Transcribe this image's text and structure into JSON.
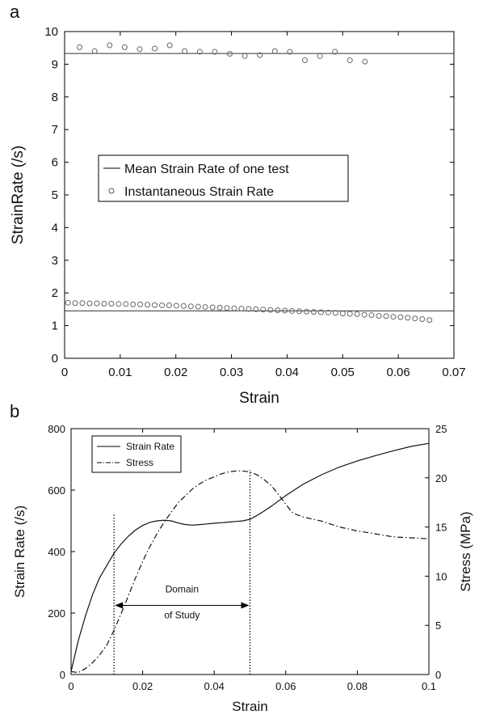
{
  "chart_data": [
    {
      "panel_label": "a",
      "type": "scatter",
      "xlabel": "Strain",
      "ylabel": "StrainRate (/s)",
      "xlim": [
        0,
        0.07
      ],
      "ylim": [
        0,
        10
      ],
      "xticks": [
        0,
        0.01,
        0.02,
        0.03,
        0.04,
        0.05,
        0.06,
        0.07
      ],
      "xtick_labels": [
        "0",
        "0.01",
        "0.02",
        "0.03",
        "0.04",
        "0.05",
        "0.06",
        "0.07"
      ],
      "yticks": [
        0,
        1,
        2,
        3,
        4,
        5,
        6,
        7,
        8,
        9,
        10
      ],
      "ytick_labels": [
        "0",
        "1",
        "2",
        "3",
        "4",
        "5",
        "6",
        "7",
        "8",
        "9",
        "10"
      ],
      "grid": false,
      "legend_position": "center-left",
      "legend": [
        "Mean Strain Rate of one test",
        "Instantaneous Strain Rate"
      ],
      "series": [
        {
          "name": "Mean Strain Rate of one test",
          "style": "line",
          "x": [
            0,
            0.07
          ],
          "y": [
            9.33,
            9.33
          ]
        },
        {
          "name": "Mean Strain Rate of one test",
          "style": "line",
          "x": [
            0,
            0.07
          ],
          "y": [
            1.45,
            1.45
          ]
        },
        {
          "name": "Instantaneous Strain Rate",
          "style": "marker",
          "x": [
            0.0027,
            0.0054,
            0.0081,
            0.0108,
            0.0135,
            0.0162,
            0.0189,
            0.0216,
            0.0243,
            0.027,
            0.0297,
            0.0324,
            0.0351,
            0.0378,
            0.0405,
            0.0432,
            0.0459,
            0.0486,
            0.0513,
            0.054
          ],
          "y": [
            9.52,
            9.4,
            9.58,
            9.52,
            9.46,
            9.48,
            9.58,
            9.4,
            9.38,
            9.38,
            9.32,
            9.25,
            9.28,
            9.4,
            9.38,
            9.12,
            9.25,
            9.38,
            9.12,
            9.08
          ]
        },
        {
          "name": "Instantaneous Strain Rate",
          "style": "marker",
          "x": [
            0.0006,
            0.0019,
            0.0032,
            0.0045,
            0.0058,
            0.0071,
            0.0084,
            0.0097,
            0.011,
            0.0123,
            0.0136,
            0.0149,
            0.0162,
            0.0175,
            0.0188,
            0.0201,
            0.0214,
            0.0227,
            0.024,
            0.0253,
            0.0266,
            0.0279,
            0.0292,
            0.0305,
            0.0318,
            0.0331,
            0.0344,
            0.0357,
            0.037,
            0.0383,
            0.0396,
            0.0409,
            0.0422,
            0.0435,
            0.0448,
            0.0461,
            0.0474,
            0.0487,
            0.05,
            0.0513,
            0.0526,
            0.0539,
            0.0552,
            0.0565,
            0.0578,
            0.0591,
            0.0604,
            0.0617,
            0.063,
            0.0643,
            0.0656
          ],
          "y": [
            1.7,
            1.69,
            1.69,
            1.68,
            1.68,
            1.67,
            1.67,
            1.66,
            1.66,
            1.65,
            1.65,
            1.64,
            1.63,
            1.62,
            1.62,
            1.61,
            1.6,
            1.59,
            1.58,
            1.57,
            1.56,
            1.55,
            1.54,
            1.53,
            1.52,
            1.51,
            1.5,
            1.49,
            1.48,
            1.47,
            1.46,
            1.45,
            1.44,
            1.43,
            1.42,
            1.41,
            1.4,
            1.39,
            1.37,
            1.36,
            1.35,
            1.33,
            1.32,
            1.3,
            1.29,
            1.27,
            1.26,
            1.24,
            1.22,
            1.2,
            1.17
          ]
        }
      ]
    },
    {
      "panel_label": "b",
      "type": "line",
      "xlabel": "Strain",
      "ylabel": "Strain Rate (/s)",
      "y2label": "Stress (MPa)",
      "xlim": [
        0,
        0.1
      ],
      "ylim": [
        0,
        800
      ],
      "y2lim": [
        0,
        25
      ],
      "xticks": [
        0,
        0.02,
        0.04,
        0.06,
        0.08,
        0.1
      ],
      "xtick_labels": [
        "0",
        "0.02",
        "0.04",
        "0.06",
        "0.08",
        "0.1"
      ],
      "yticks": [
        0,
        200,
        400,
        600,
        800
      ],
      "ytick_labels": [
        "0",
        "200",
        "400",
        "600",
        "800"
      ],
      "y2ticks": [
        0,
        5,
        10,
        15,
        20,
        25
      ],
      "y2tick_labels": [
        "0",
        "5",
        "10",
        "15",
        "20",
        "25"
      ],
      "grid": false,
      "legend_position": "top-left",
      "legend": [
        "Strain Rate",
        "Stress"
      ],
      "series": [
        {
          "name": "Strain Rate",
          "axis": "left",
          "style": "solid",
          "x": [
            0,
            0.002,
            0.004,
            0.006,
            0.008,
            0.01,
            0.012,
            0.014,
            0.016,
            0.018,
            0.02,
            0.022,
            0.024,
            0.026,
            0.028,
            0.03,
            0.032,
            0.034,
            0.036,
            0.038,
            0.04,
            0.042,
            0.044,
            0.046,
            0.048,
            0.05,
            0.052,
            0.054,
            0.056,
            0.058,
            0.06,
            0.065,
            0.07,
            0.075,
            0.08,
            0.085,
            0.09,
            0.095,
            0.1
          ],
          "y": [
            10,
            110,
            190,
            260,
            315,
            355,
            395,
            425,
            450,
            470,
            485,
            495,
            500,
            502,
            500,
            493,
            488,
            486,
            488,
            490,
            492,
            494,
            496,
            498,
            500,
            505,
            518,
            532,
            548,
            565,
            582,
            620,
            650,
            675,
            695,
            712,
            728,
            742,
            752
          ]
        },
        {
          "name": "Stress",
          "axis": "right",
          "style": "dashdot",
          "x": [
            0,
            0.002,
            0.004,
            0.006,
            0.008,
            0.01,
            0.012,
            0.014,
            0.016,
            0.018,
            0.02,
            0.022,
            0.024,
            0.026,
            0.028,
            0.03,
            0.032,
            0.034,
            0.036,
            0.038,
            0.04,
            0.042,
            0.044,
            0.046,
            0.048,
            0.05,
            0.052,
            0.054,
            0.056,
            0.058,
            0.06,
            0.062,
            0.065,
            0.07,
            0.075,
            0.08,
            0.085,
            0.09,
            0.095,
            0.1
          ],
          "y": [
            0.3,
            0.2,
            0.6,
            1.2,
            2.0,
            3.0,
            4.5,
            6.2,
            8.0,
            9.8,
            11.5,
            13.0,
            14.3,
            15.5,
            16.5,
            17.5,
            18.2,
            18.9,
            19.4,
            19.8,
            20.1,
            20.4,
            20.6,
            20.7,
            20.7,
            20.6,
            20.3,
            19.8,
            19.2,
            18.3,
            17.3,
            16.4,
            16.0,
            15.6,
            15.0,
            14.6,
            14.3,
            14.0,
            13.9,
            13.8
          ]
        }
      ],
      "annotations": {
        "domain_line1": "Domain",
        "domain_line2": "of Study",
        "domain_start": 0.012,
        "domain_end": 0.05,
        "arrow_y": 225,
        "domain_top": 525,
        "domain_top2": 665
      }
    }
  ]
}
